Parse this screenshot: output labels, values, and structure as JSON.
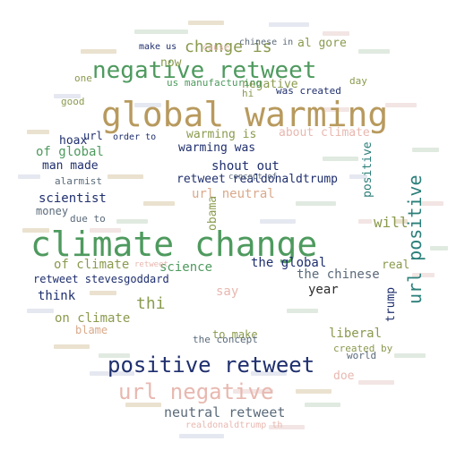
{
  "colors": {
    "tan": "#b89a5e",
    "green": "#4e9a5e",
    "navy": "#1f2f6e",
    "teal": "#2a7f7a",
    "olive": "#8a9a4e",
    "pink": "#e8b8b0",
    "slate": "#5a6a7a",
    "sage": "#7aa87e",
    "peach": "#d9a98a",
    "dark": "#2b2b2b"
  },
  "words": [
    {
      "text": "climate change",
      "color": "green"
    },
    {
      "text": "global warming",
      "color": "tan"
    },
    {
      "text": "negative retweet",
      "color": "green"
    },
    {
      "text": "positive retweet",
      "color": "navy"
    },
    {
      "text": "url negative",
      "color": "pink"
    },
    {
      "text": "url positive",
      "color": "teal"
    },
    {
      "text": "change is",
      "color": "olive"
    },
    {
      "text": "retweet realdonaldtrump",
      "color": "navy"
    },
    {
      "text": "neutral retweet",
      "color": "slate"
    },
    {
      "text": "retweet stevesgoddard",
      "color": "navy"
    },
    {
      "text": "shout out",
      "color": "navy"
    },
    {
      "text": "url neutral",
      "color": "peach"
    },
    {
      "text": "about climate",
      "color": "pink"
    },
    {
      "text": "warming was",
      "color": "navy"
    },
    {
      "text": "warming is",
      "color": "olive"
    },
    {
      "text": "negative",
      "color": "olive"
    },
    {
      "text": "man made",
      "color": "navy"
    },
    {
      "text": "of global",
      "color": "green"
    },
    {
      "text": "scientist",
      "color": "navy"
    },
    {
      "text": "alarmist",
      "color": "slate"
    },
    {
      "text": "money",
      "color": "slate"
    },
    {
      "text": "of climate",
      "color": "olive"
    },
    {
      "text": "science",
      "color": "green"
    },
    {
      "text": "the global",
      "color": "navy"
    },
    {
      "text": "the chinese",
      "color": "slate"
    },
    {
      "text": "think",
      "color": "navy"
    },
    {
      "text": "on climate",
      "color": "olive"
    },
    {
      "text": "blame",
      "color": "peach"
    },
    {
      "text": "thi",
      "color": "olive"
    },
    {
      "text": "year",
      "color": "dark"
    },
    {
      "text": "liberal",
      "color": "olive"
    },
    {
      "text": "will",
      "color": "olive"
    },
    {
      "text": "trump",
      "color": "navy"
    },
    {
      "text": "positive",
      "color": "teal"
    },
    {
      "text": "say",
      "color": "pink"
    },
    {
      "text": "obama",
      "color": "olive"
    },
    {
      "text": "to make",
      "color": "olive"
    },
    {
      "text": "the concept",
      "color": "slate"
    },
    {
      "text": "world",
      "color": "slate"
    },
    {
      "text": "doe",
      "color": "pink"
    },
    {
      "text": "hoax",
      "color": "navy"
    },
    {
      "text": "good",
      "color": "olive"
    },
    {
      "text": "url",
      "color": "navy"
    },
    {
      "text": "one",
      "color": "olive"
    },
    {
      "text": "now",
      "color": "olive"
    },
    {
      "text": "make us",
      "color": "navy"
    },
    {
      "text": "cause",
      "color": "pink"
    },
    {
      "text": "chinese in",
      "color": "slate"
    },
    {
      "text": "al gore",
      "color": "olive"
    },
    {
      "text": "us manufacturing",
      "color": "green"
    },
    {
      "text": "was created",
      "color": "navy"
    },
    {
      "text": "day",
      "color": "olive"
    },
    {
      "text": "hi",
      "color": "olive"
    },
    {
      "text": "concept of",
      "color": "slate"
    },
    {
      "text": "order to",
      "color": "navy"
    },
    {
      "text": "due to",
      "color": "slate"
    },
    {
      "text": "real",
      "color": "olive"
    },
    {
      "text": "created by",
      "color": "olive"
    },
    {
      "text": "realdonaldtrump th",
      "color": "pink"
    },
    {
      "text": "retweet",
      "color": "pink"
    }
  ]
}
